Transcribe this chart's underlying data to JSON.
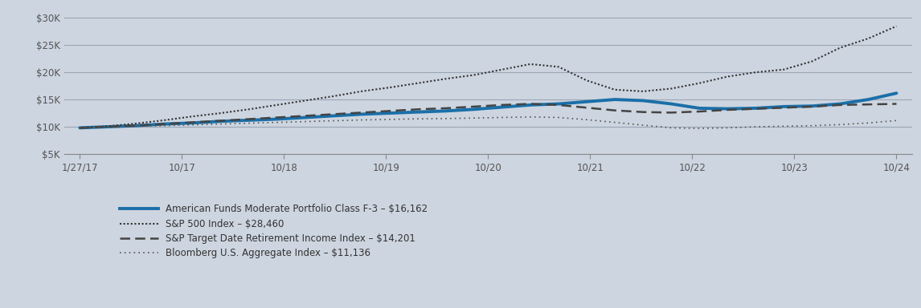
{
  "background_color": "#cdd5e0",
  "plot_bg_color": "#cdd5e0",
  "grid_color": "#9aa5b4",
  "ylabel_color": "#555555",
  "xlabel_color": "#555555",
  "ylim": [
    5000,
    31000
  ],
  "yticks": [
    5000,
    10000,
    15000,
    20000,
    25000,
    30000
  ],
  "xtick_labels": [
    "1/27/17",
    "10/17",
    "10/18",
    "10/19",
    "10/20",
    "10/21",
    "10/22",
    "10/23",
    "10/24"
  ],
  "series": {
    "afmp": {
      "label": "American Funds Moderate Portfolio Class F-3 – $16,162",
      "color": "#1a6fa8",
      "linewidth": 2.8,
      "linestyle": "solid",
      "values": [
        9800,
        10000,
        10200,
        10500,
        10700,
        11000,
        11200,
        11400,
        11700,
        12000,
        12300,
        12500,
        12700,
        12900,
        13200,
        13600,
        14000,
        14200,
        14600,
        15000,
        14800,
        14200,
        13400,
        13300,
        13400,
        13700,
        13800,
        14200,
        15000,
        16162
      ]
    },
    "sp500": {
      "label": "S&P 500 Index – $28,460",
      "color": "#333333",
      "linewidth": 1.5,
      "linestyle": "densely_dotted",
      "values": [
        9800,
        10100,
        10600,
        11200,
        11900,
        12500,
        13200,
        14000,
        14800,
        15600,
        16500,
        17200,
        18000,
        18800,
        19500,
        20500,
        21500,
        21000,
        18500,
        16800,
        16500,
        17000,
        18000,
        19200,
        20000,
        20500,
        22000,
        24500,
        26200,
        28460
      ]
    },
    "sp_target": {
      "label": "S&P Target Date Retirement Income Index – $14,201",
      "color": "#444444",
      "linewidth": 1.8,
      "linestyle": "dashed",
      "values": [
        9800,
        10000,
        10200,
        10500,
        10800,
        11100,
        11400,
        11700,
        12000,
        12300,
        12600,
        12900,
        13200,
        13400,
        13700,
        14000,
        14200,
        14000,
        13500,
        13000,
        12700,
        12600,
        12800,
        13100,
        13300,
        13500,
        13700,
        14000,
        14100,
        14201
      ]
    },
    "bloomberg": {
      "label": "Bloomberg U.S. Aggregate Index – $11,136",
      "color": "#555555",
      "linewidth": 1.2,
      "linestyle": "loosely_dotted",
      "values": [
        9800,
        10000,
        10100,
        10200,
        10350,
        10500,
        10650,
        10800,
        10950,
        11100,
        11250,
        11350,
        11450,
        11500,
        11600,
        11700,
        11800,
        11700,
        11300,
        10800,
        10300,
        9800,
        9700,
        9800,
        10000,
        10100,
        10200,
        10400,
        10700,
        11136
      ]
    }
  }
}
